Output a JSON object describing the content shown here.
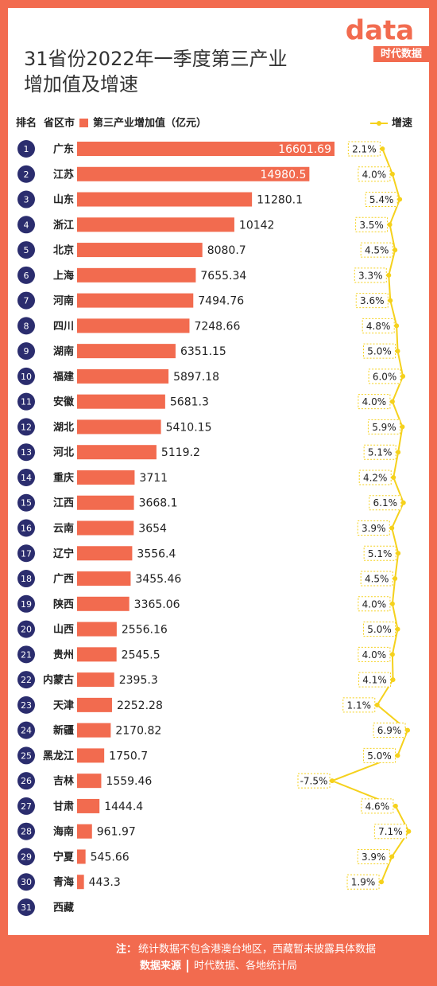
{
  "chart_data": {
    "type": "bar",
    "title": "31省份2022年一季度第三产业",
    "title_line2": "增加值及增速",
    "logo": "data",
    "logo_sub": "时代数据",
    "rank_header": "排名",
    "category_header": "省区市",
    "ranks": [
      1,
      2,
      3,
      4,
      5,
      6,
      7,
      8,
      9,
      10,
      11,
      12,
      13,
      14,
      15,
      16,
      17,
      18,
      19,
      20,
      21,
      22,
      23,
      24,
      25,
      26,
      27,
      28,
      29,
      30,
      31
    ],
    "categories": [
      "广东",
      "江苏",
      "山东",
      "浙江",
      "北京",
      "上海",
      "河南",
      "四川",
      "湖南",
      "福建",
      "安徽",
      "湖北",
      "河北",
      "重庆",
      "江西",
      "云南",
      "辽宁",
      "广西",
      "陕西",
      "山西",
      "贵州",
      "内蒙古",
      "天津",
      "新疆",
      "黑龙江",
      "吉林",
      "甘肃",
      "海南",
      "宁夏",
      "青海",
      "西藏"
    ],
    "series": [
      {
        "name": "第三产业增加值（亿元）",
        "color": "#f26b4f",
        "values": [
          16601.69,
          14980.5,
          11280.1,
          10142,
          8080.7,
          7655.34,
          7494.76,
          7248.66,
          6351.15,
          5897.18,
          5681.3,
          5410.15,
          5119.2,
          3711,
          3668.1,
          3654,
          3556.4,
          3455.46,
          3365.06,
          2556.16,
          2545.5,
          2395.3,
          2252.28,
          2170.82,
          1750.7,
          1559.46,
          1444.4,
          961.97,
          545.66,
          443.3,
          null
        ]
      },
      {
        "name": "增速",
        "color": "#f5d11c",
        "values": [
          2.1,
          4.0,
          5.4,
          3.5,
          4.5,
          3.3,
          3.6,
          4.8,
          5.0,
          6.0,
          4.0,
          5.9,
          5.1,
          4.2,
          6.1,
          3.9,
          5.1,
          4.5,
          4.0,
          5.0,
          4.0,
          4.1,
          1.1,
          6.9,
          5.0,
          -7.5,
          4.6,
          7.1,
          3.9,
          1.9,
          null
        ],
        "value_labels": [
          "2.1%",
          "4.0%",
          "5.4%",
          "3.5%",
          "4.5%",
          "3.3%",
          "3.6%",
          "4.8%",
          "5.0%",
          "6.0%",
          "4.0%",
          "5.9%",
          "5.1%",
          "4.2%",
          "6.1%",
          "3.9%",
          "5.1%",
          "4.5%",
          "4.0%",
          "5.0%",
          "4.0%",
          "4.1%",
          "1.1%",
          "6.9%",
          "5.0%",
          "-7.5%",
          "4.6%",
          "7.1%",
          "3.9%",
          "1.9%",
          null
        ]
      }
    ],
    "note_label": "注：",
    "note": "统计数据不包含港澳台地区，西藏暂未披露具体数据",
    "source_label": "数据来源",
    "source": "时代数据、各地统计局"
  }
}
